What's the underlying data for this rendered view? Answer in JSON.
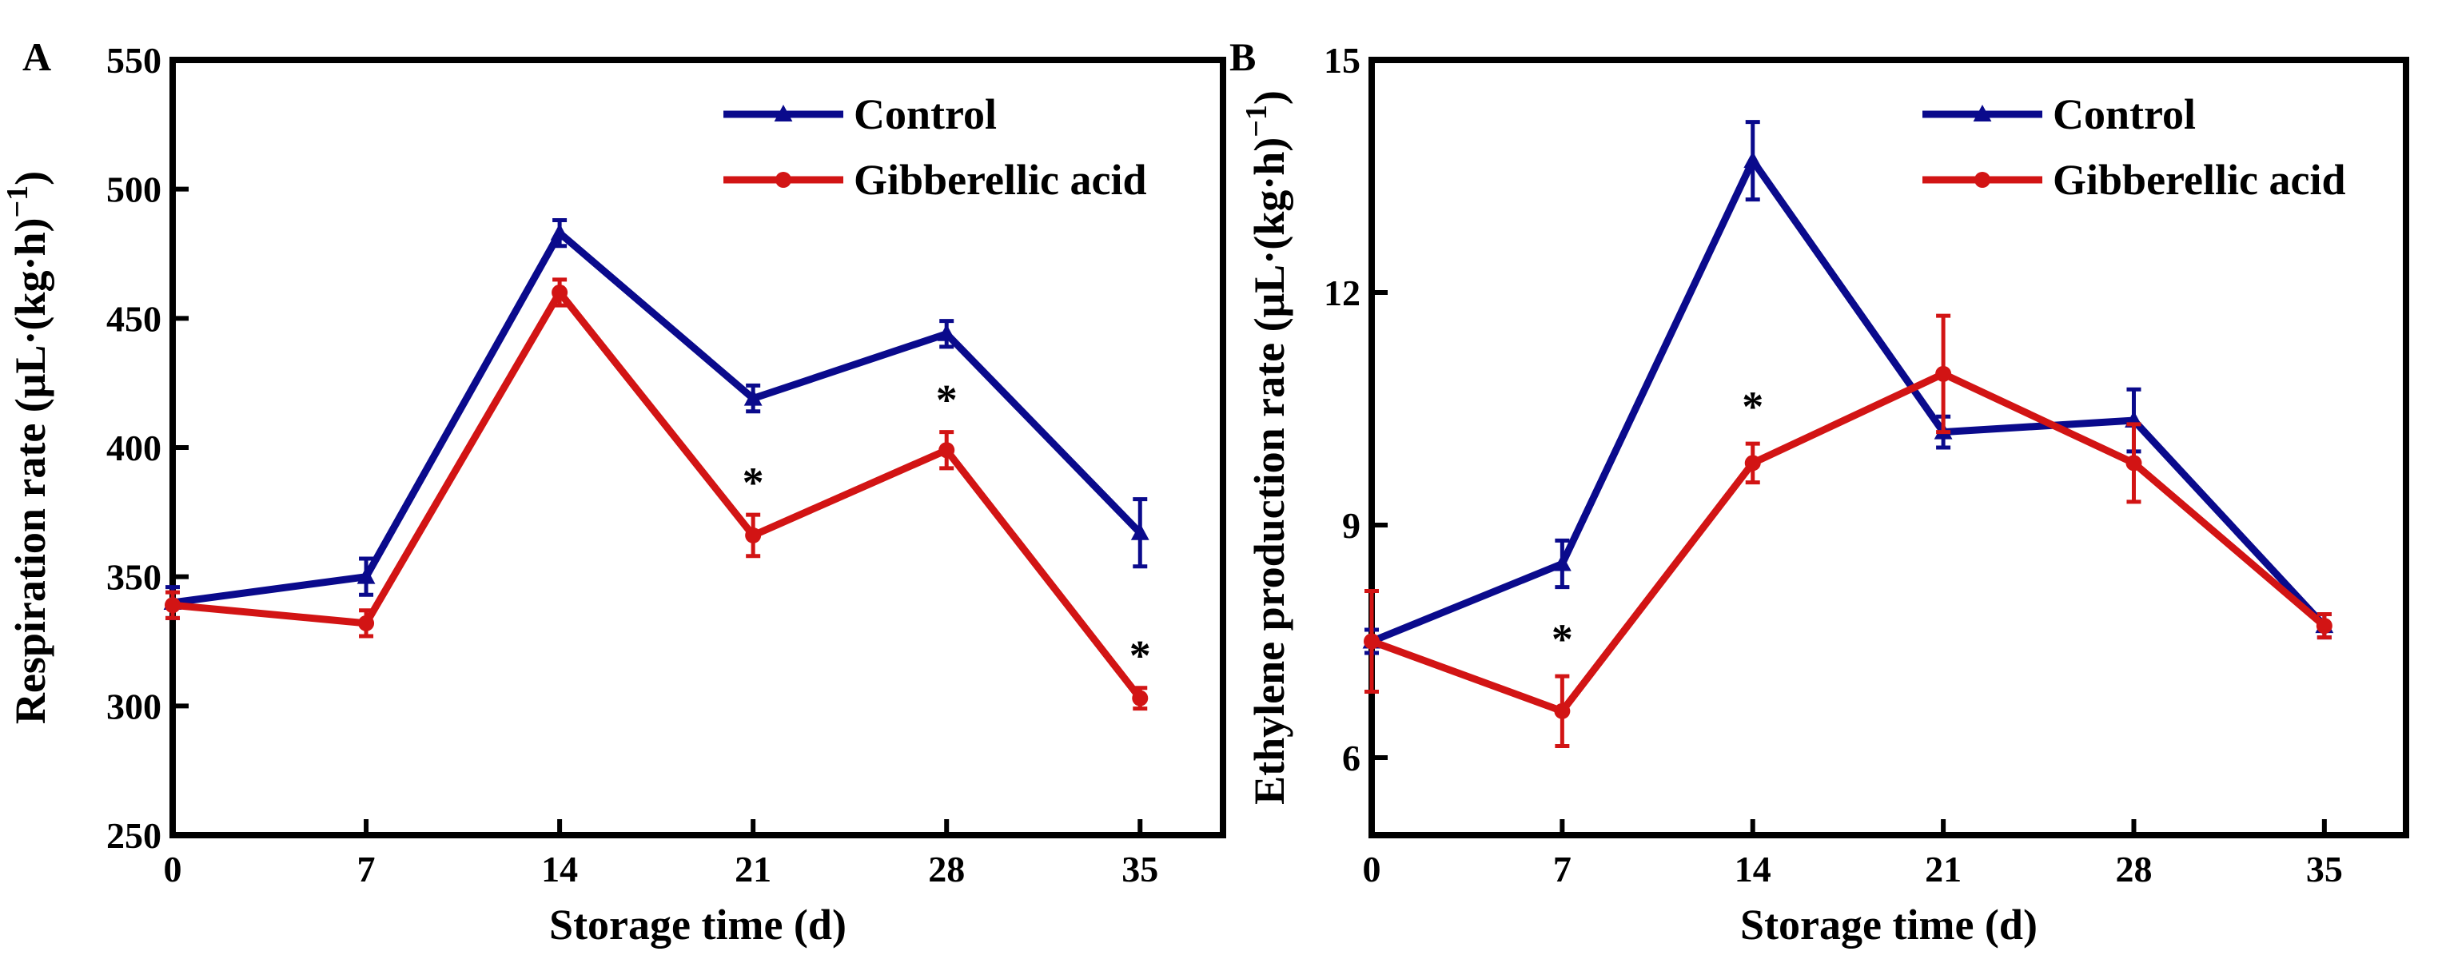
{
  "colors": {
    "control": "#0a0a8c",
    "ga": "#d21414",
    "axis": "#000000"
  },
  "chart_data": [
    {
      "type": "line",
      "panel_label": "A",
      "xlabel": "Storage time (d)",
      "ylabel": "Respiration rate (μL·(kg·h)",
      "ylabel_sup": "−1",
      "ylabel_close": ")",
      "xlim": [
        0,
        38
      ],
      "ylim": [
        250,
        550
      ],
      "xticks": [
        0,
        7,
        14,
        21,
        28,
        35
      ],
      "yticks": [
        250,
        300,
        350,
        400,
        450,
        500,
        550
      ],
      "x": [
        0,
        7,
        14,
        21,
        28,
        35
      ],
      "series": [
        {
          "name": "Control",
          "values": [
            340,
            350,
            483,
            419,
            444,
            367
          ],
          "errors": [
            6,
            7,
            5,
            5,
            5,
            13
          ]
        },
        {
          "name": "Gibberellic acid",
          "values": [
            339,
            332,
            460,
            366,
            399,
            303
          ],
          "errors": [
            5,
            5,
            5,
            8,
            7,
            4
          ]
        }
      ],
      "annotations": [
        {
          "x": 21,
          "y": 366,
          "text": "*"
        },
        {
          "x": 28,
          "y": 399,
          "text": "*"
        },
        {
          "x": 35,
          "y": 303,
          "text": "*"
        }
      ],
      "legend": "top-right"
    },
    {
      "type": "line",
      "panel_label": "B",
      "xlabel": "Storage time (d)",
      "ylabel": "Ethylene production rate (μL·(kg·h)",
      "ylabel_sup": "−1",
      "ylabel_close": ")",
      "xlim": [
        0,
        38
      ],
      "ylim": [
        5,
        15
      ],
      "xticks": [
        0,
        7,
        14,
        21,
        28,
        35
      ],
      "yticks": [
        6,
        9,
        12,
        15
      ],
      "x": [
        0,
        7,
        14,
        21,
        28,
        35
      ],
      "series": [
        {
          "name": "Control",
          "values": [
            7.5,
            8.5,
            13.7,
            10.2,
            10.35,
            7.7
          ],
          "errors": [
            0.15,
            0.3,
            0.5,
            0.2,
            0.4,
            0.15
          ]
        },
        {
          "name": "Gibberellic acid",
          "values": [
            7.5,
            6.6,
            9.8,
            10.95,
            9.8,
            7.7
          ],
          "errors": [
            0.65,
            0.45,
            0.25,
            0.75,
            0.5,
            0.15
          ]
        }
      ],
      "annotations": [
        {
          "x": 7,
          "y": 6.6,
          "text": "*"
        },
        {
          "x": 14,
          "y": 9.8,
          "text": "*"
        }
      ],
      "legend": "top-right"
    }
  ]
}
